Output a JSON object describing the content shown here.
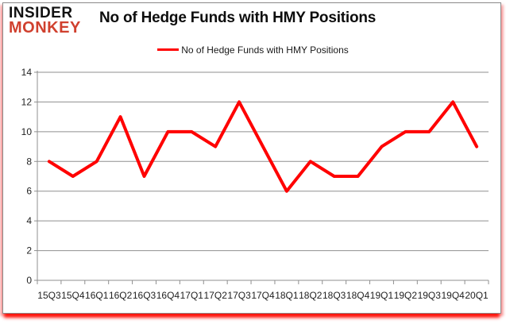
{
  "logo": {
    "line1": "INSIDER",
    "line2": "MONKEY"
  },
  "header": {
    "title": "No of Hedge Funds with HMY Positions"
  },
  "legend": {
    "label": "No of Hedge Funds with HMY Positions"
  },
  "colors": {
    "series_line": "#ff0000",
    "grid": "#8f8f8f",
    "axis_text": "#1f1f1f",
    "logo_black": "#121212",
    "logo_red": "#d0402e",
    "frame_border": "#8a8a8a",
    "frame_shadow_red": "#ff0a00"
  },
  "chart_data": {
    "type": "line",
    "title": "No of Hedge Funds with HMY Positions",
    "categories": [
      "15Q3",
      "15Q4",
      "16Q1",
      "16Q2",
      "16Q3",
      "16Q4",
      "17Q1",
      "17Q2",
      "17Q3",
      "17Q4",
      "18Q1",
      "18Q2",
      "18Q3",
      "18Q4",
      "19Q1",
      "19Q2",
      "19Q3",
      "19Q4",
      "20Q1"
    ],
    "series": [
      {
        "name": "No of Hedge Funds with HMY Positions",
        "values": [
          8,
          7,
          8,
          11,
          7,
          10,
          10,
          9,
          12,
          9,
          6,
          8,
          7,
          7,
          9,
          10,
          10,
          12,
          9
        ]
      }
    ],
    "xlabel": "",
    "ylabel": "",
    "ylim": [
      0,
      14
    ],
    "yticks": [
      0,
      2,
      4,
      6,
      8,
      10,
      12,
      14
    ],
    "grid": true,
    "legend_position": "top-center"
  }
}
